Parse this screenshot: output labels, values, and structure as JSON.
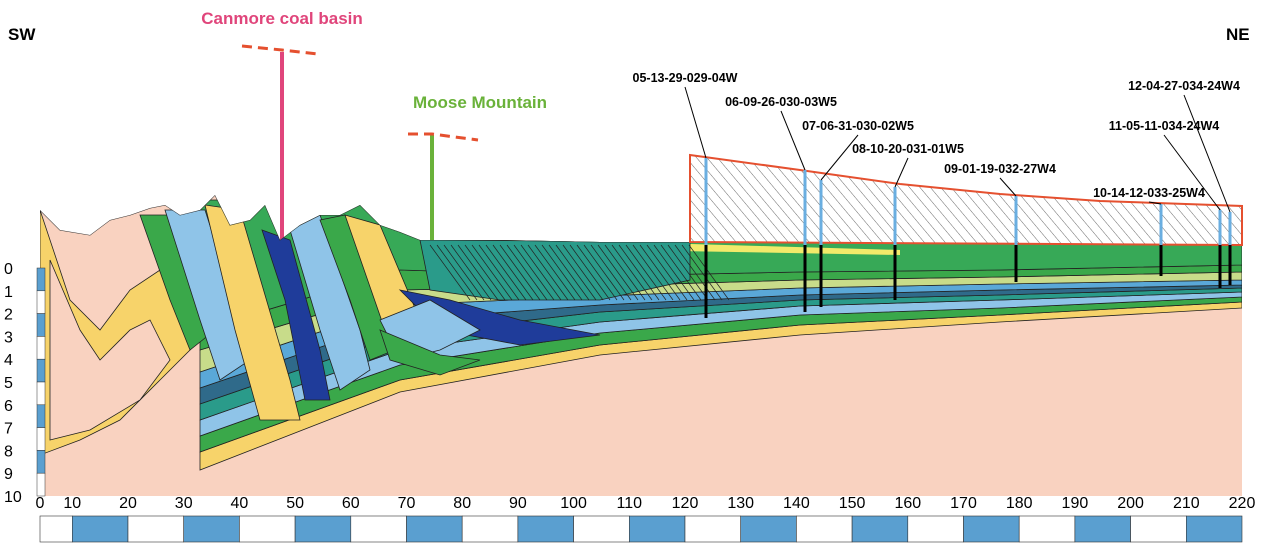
{
  "labels": {
    "sw": "SW",
    "ne": "NE",
    "canmore": "Canmore coal basin",
    "moose": "Moose Mountain"
  },
  "wells": [
    "05-13-29-029-04W",
    "06-09-26-030-03W5",
    "07-06-31-030-02W5",
    "08-10-20-031-01W5",
    "09-01-19-032-27W4",
    "10-14-12-033-25W4",
    "11-05-11-034-24W4",
    "12-04-27-034-24W4"
  ],
  "depth_ticks": [
    0,
    1,
    2,
    3,
    4,
    5,
    6,
    7,
    8,
    9,
    10
  ],
  "distance_ticks": [
    0,
    10,
    20,
    30,
    40,
    50,
    60,
    70,
    80,
    90,
    100,
    110,
    120,
    130,
    140,
    150,
    160,
    170,
    180,
    190,
    200,
    210,
    220
  ]
}
